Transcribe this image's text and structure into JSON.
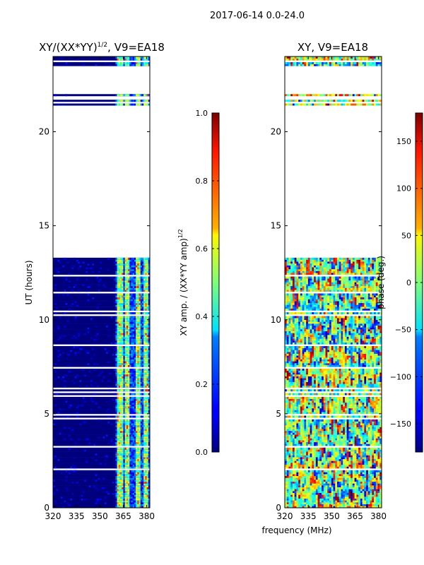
{
  "suptitle": "2017-06-14 0.0-24.0",
  "colors": {
    "low": "#00007f",
    "blank": "#ffffff",
    "axis": "#000000"
  },
  "chart_data": [
    {
      "type": "heatmap",
      "title_main": "XY/(XX*YY)",
      "title_sup": "1/2",
      "title_rest": ", V9=EA18",
      "xlabel": "",
      "ylabel": "UT (hours)",
      "xlim": [
        320,
        382
      ],
      "ylim": [
        0,
        24
      ],
      "xticks": [
        "320",
        "335",
        "350",
        "365",
        "380"
      ],
      "yticks": [
        "0",
        "5",
        "10",
        "15",
        "20"
      ],
      "colormap": "jet",
      "colorbar": {
        "label_main": "XY amp. / (XX*YY amp)",
        "label_sup": "1/2",
        "range": [
          0,
          1
        ],
        "ticks": [
          "0.0",
          "0.2",
          "0.4",
          "0.6",
          "0.8",
          "1.0"
        ]
      },
      "blank_time_ranges": [
        [
          13.3,
          21.3
        ],
        [
          22.2,
          22.9
        ],
        [
          23.2,
          23.45
        ]
      ],
      "bright_freq_bands_mhz": [
        [
          361.5,
          364.5
        ],
        [
          366.5,
          368.5
        ],
        [
          373.5,
          375.5
        ],
        [
          378.5,
          380.5
        ]
      ]
    },
    {
      "type": "heatmap",
      "title_main": "XY, V9=EA18",
      "xlabel": "frequency (MHz)",
      "ylabel": "",
      "xlim": [
        320,
        382
      ],
      "ylim": [
        0,
        24
      ],
      "xticks": [
        "320",
        "335",
        "350",
        "365",
        "380"
      ],
      "yticks": [
        "0",
        "5",
        "10",
        "15",
        "20"
      ],
      "colormap": "jet",
      "colorbar": {
        "label_main": "phase (deg.)",
        "range": [
          -180,
          180
        ],
        "ticks": [
          "−150",
          "−100",
          "−50",
          "0",
          "50",
          "100",
          "150"
        ]
      },
      "blank_time_ranges": [
        [
          13.3,
          21.3
        ],
        [
          22.2,
          22.9
        ],
        [
          23.2,
          23.45
        ]
      ]
    }
  ]
}
